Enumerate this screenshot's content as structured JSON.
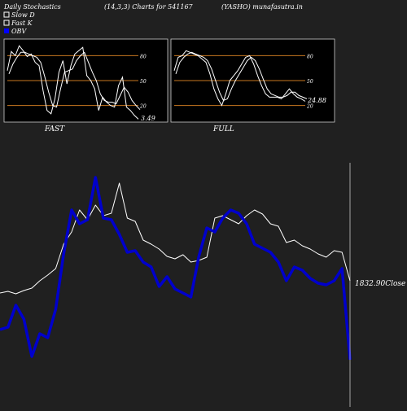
{
  "header": {
    "title": "Daily Stochastics",
    "params": "(14,3,3) Charts for 541167",
    "symbol": "(YASHO) munafasutra.in"
  },
  "legend": [
    {
      "label": "Slow  D",
      "color": "#ffffff"
    },
    {
      "label": "Fast K",
      "color": "#ffffff"
    },
    {
      "label": "OBV",
      "color": "#0000ff"
    }
  ],
  "colors": {
    "background": "#202020",
    "panel": "#000000",
    "level_line": "#c87820",
    "text": "#ffffff",
    "obv": "#0000cc",
    "close": "#ffffff"
  },
  "chart_data": [
    {
      "type": "line",
      "title": "FAST",
      "ylim": [
        0,
        100
      ],
      "levels": [
        20,
        50,
        80
      ],
      "level_labels": [
        "20",
        "50",
        "80"
      ],
      "last_value_label": "3.49",
      "series": [
        {
          "name": "Fast K",
          "values": [
            62,
            85,
            80,
            92,
            86,
            79,
            82,
            72,
            68,
            38,
            14,
            10,
            28,
            60,
            74,
            46,
            68,
            82,
            86,
            90,
            56,
            50,
            40,
            14,
            30,
            24,
            20,
            18,
            44,
            54,
            18,
            14,
            8,
            3.49
          ]
        },
        {
          "name": "Slow D",
          "values": [
            58,
            70,
            78,
            84,
            84,
            82,
            80,
            78,
            72,
            55,
            36,
            20,
            18,
            40,
            60,
            62,
            64,
            74,
            80,
            84,
            72,
            60,
            50,
            34,
            26,
            24,
            24,
            22,
            32,
            42,
            36,
            26,
            20,
            15
          ]
        }
      ]
    },
    {
      "type": "line",
      "title": "FULL",
      "ylim": [
        0,
        100
      ],
      "levels": [
        20,
        50,
        80
      ],
      "level_labels": [
        "20",
        "50",
        "80"
      ],
      "last_value_label": "24.88",
      "series": [
        {
          "name": "Fast K",
          "values": [
            62,
            78,
            80,
            86,
            84,
            82,
            80,
            76,
            72,
            58,
            40,
            28,
            20,
            34,
            50,
            56,
            62,
            70,
            78,
            80,
            70,
            56,
            44,
            34,
            30,
            30,
            30,
            28,
            34,
            40,
            34,
            30,
            28,
            25
          ]
        },
        {
          "name": "Slow D",
          "values": [
            58,
            72,
            78,
            82,
            84,
            82,
            80,
            78,
            74,
            64,
            50,
            36,
            26,
            28,
            40,
            50,
            58,
            66,
            74,
            78,
            74,
            64,
            52,
            40,
            34,
            32,
            30,
            30,
            32,
            36,
            36,
            32,
            30,
            28
          ]
        }
      ]
    },
    {
      "type": "line",
      "title": "",
      "close_label": "1832.90Close",
      "series": [
        {
          "name": "Close",
          "values": [
            360,
            358,
            361,
            357,
            354,
            345,
            338,
            330,
            300,
            285,
            258,
            270,
            252,
            265,
            262,
            225,
            268,
            272,
            295,
            300,
            306,
            315,
            318,
            313,
            322,
            320,
            316,
            268,
            265,
            270,
            275,
            265,
            258,
            263,
            275,
            278,
            298,
            295,
            302,
            306,
            312,
            316,
            308,
            310,
            345
          ]
        },
        {
          "name": "OBV",
          "values": [
            405,
            402,
            375,
            392,
            438,
            410,
            415,
            380,
            312,
            258,
            275,
            270,
            218,
            268,
            270,
            288,
            310,
            308,
            322,
            328,
            352,
            340,
            355,
            360,
            365,
            315,
            280,
            285,
            268,
            258,
            262,
            275,
            300,
            305,
            310,
            322,
            345,
            328,
            332,
            342,
            348,
            350,
            345,
            330,
            442
          ]
        }
      ]
    }
  ]
}
